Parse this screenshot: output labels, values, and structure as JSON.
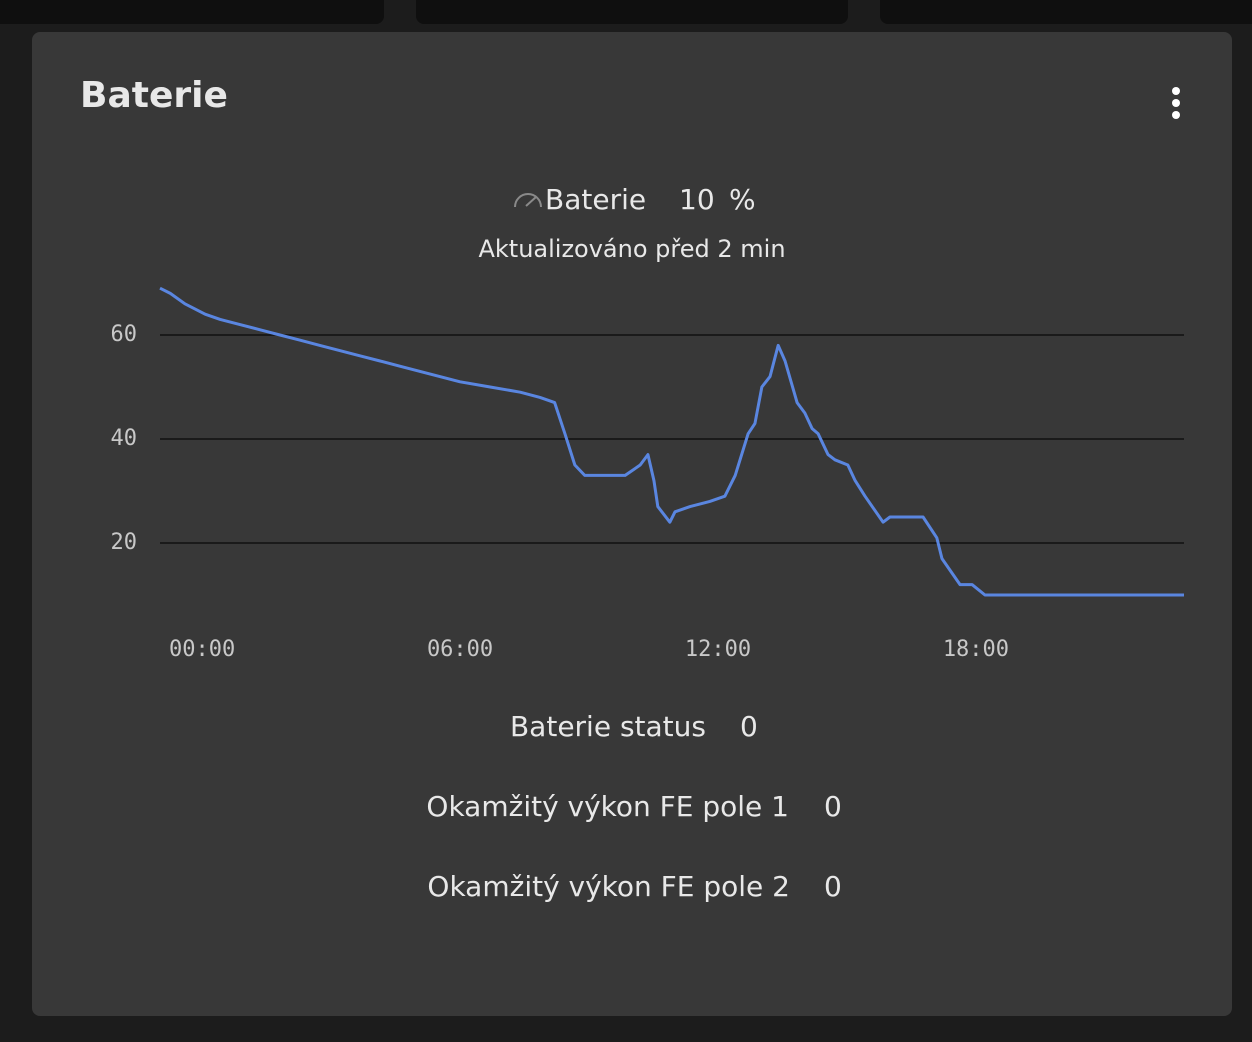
{
  "card": {
    "title": "Baterie"
  },
  "entity": {
    "name": "Baterie",
    "value": 10,
    "unit": "%",
    "updated": "Aktualizováno před 2 min"
  },
  "chart_data": {
    "type": "line",
    "x": [
      -0.98,
      -0.74,
      -0.4,
      0.07,
      0.42,
      0.88,
      1.35,
      1.81,
      2.28,
      2.74,
      3.2,
      3.67,
      4.14,
      4.6,
      5.07,
      5.53,
      6.0,
      6.7,
      7.4,
      7.86,
      8.2,
      8.44,
      8.67,
      8.9,
      9.84,
      10.19,
      10.37,
      10.51,
      10.6,
      10.88,
      11.0,
      11.35,
      11.81,
      12.16,
      12.4,
      12.7,
      12.86,
      13.02,
      13.21,
      13.4,
      13.56,
      13.84,
      14.02,
      14.19,
      14.33,
      14.56,
      14.72,
      15.02,
      15.19,
      15.42,
      15.84,
      16.0,
      16.77,
      17.09,
      17.21,
      17.63,
      17.91,
      18.21,
      22.84
    ],
    "series": [
      {
        "color": "#5a86e0",
        "values": [
          69,
          68,
          66,
          64,
          63,
          62,
          61,
          60,
          59,
          58,
          57,
          56,
          55,
          54,
          53,
          52,
          51,
          50,
          49,
          48,
          47,
          41,
          35,
          33,
          33,
          35,
          37,
          32,
          27,
          24,
          26,
          27,
          28,
          29,
          33,
          41,
          43,
          50,
          52,
          58,
          55,
          47,
          45,
          42,
          41,
          37,
          36,
          35,
          32,
          29,
          24,
          25,
          25,
          21,
          17,
          12,
          12,
          10,
          10
        ]
      }
    ],
    "xlim": [
      -0.98,
      22.84
    ],
    "xticks": [
      {
        "value": 0,
        "label": "00:00"
      },
      {
        "value": 6,
        "label": "06:00"
      },
      {
        "value": 12,
        "label": "12:00"
      },
      {
        "value": 18,
        "label": "18:00"
      }
    ],
    "ylim": [
      0,
      70
    ],
    "yticks": [
      20,
      40,
      60
    ],
    "grid": true
  },
  "rows": [
    {
      "name": "Baterie status",
      "value": 0
    },
    {
      "name": "Okamžitý výkon FE pole 1",
      "value": 0
    },
    {
      "name": "Okamžitý výkon FE pole 2",
      "value": 0
    }
  ]
}
